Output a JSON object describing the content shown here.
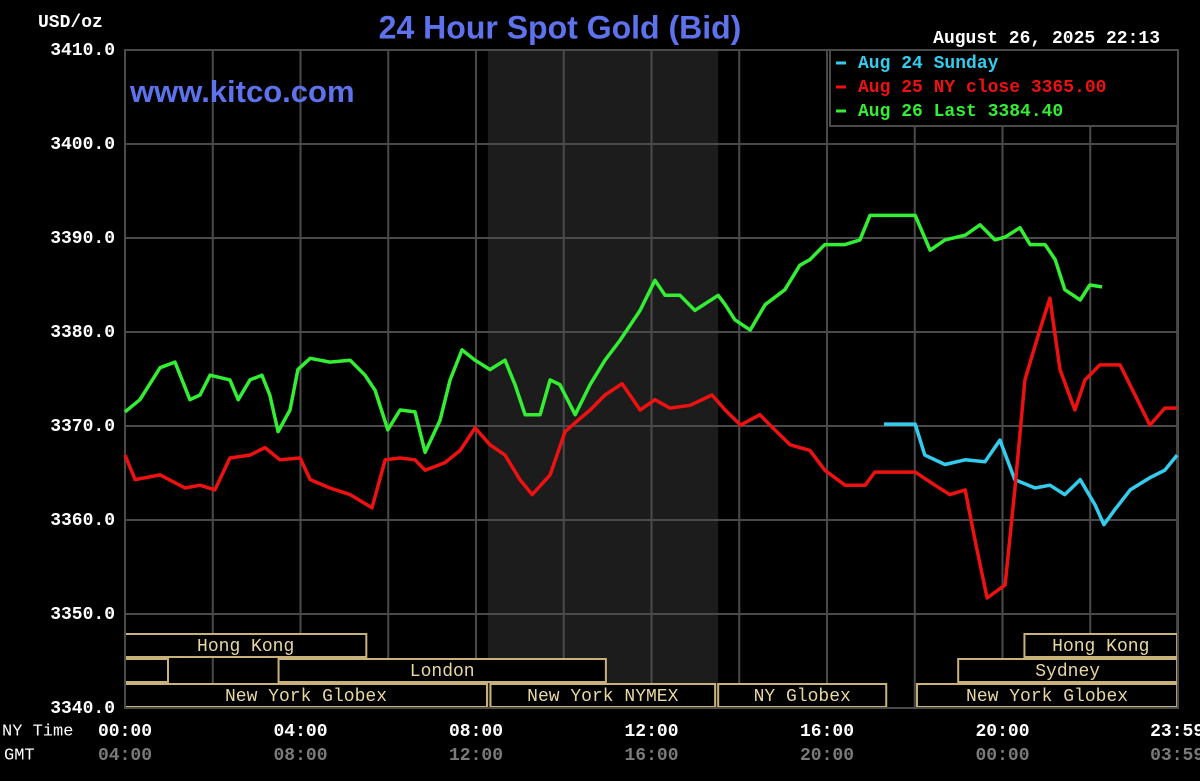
{
  "chart_data": {
    "type": "line",
    "title": "24 Hour Spot Gold (Bid)",
    "y_label": "USD/oz",
    "watermark": "www.kitco.com",
    "timestamp": "August 26, 2025 22:13",
    "x_label": "NY Time",
    "x2_label": "GMT",
    "xlim": [
      0,
      24
    ],
    "ylim": [
      3340,
      3410
    ],
    "yticks": [
      {
        "value": 3340,
        "label": "3340.0"
      },
      {
        "value": 3350,
        "label": "3350.0"
      },
      {
        "value": 3360,
        "label": "3360.0"
      },
      {
        "value": 3370,
        "label": "3370.0"
      },
      {
        "value": 3380,
        "label": "3380.0"
      },
      {
        "value": 3390,
        "label": "3390.0"
      },
      {
        "value": 3400,
        "label": "3400.0"
      },
      {
        "value": 3410,
        "label": "3410.0"
      }
    ],
    "xticks": [
      {
        "value": 0,
        "label": "00:00"
      },
      {
        "value": 4,
        "label": "04:00"
      },
      {
        "value": 8,
        "label": "08:00"
      },
      {
        "value": 12,
        "label": "12:00"
      },
      {
        "value": 16,
        "label": "16:00"
      },
      {
        "value": 20,
        "label": "20:00"
      },
      {
        "value": 23.98,
        "label": "23:59"
      }
    ],
    "x2ticks": [
      {
        "value": 0,
        "label": "04:00"
      },
      {
        "value": 4,
        "label": "08:00"
      },
      {
        "value": 8,
        "label": "12:00"
      },
      {
        "value": 12,
        "label": "16:00"
      },
      {
        "value": 16,
        "label": "20:00"
      },
      {
        "value": 20,
        "label": "00:00"
      },
      {
        "value": 23.98,
        "label": "03:59"
      }
    ],
    "xminorticks": [
      2,
      6,
      10,
      14,
      18,
      22
    ],
    "grid": true,
    "legend": "top-right",
    "shaded": [
      8.27,
      13.52
    ],
    "sessions": [
      {
        "label": "Hong Kong",
        "start": 0,
        "end": 5.5,
        "row": 1
      },
      {
        "label": "Hong Kong",
        "start": 20.5,
        "end": 23.98,
        "row": 1
      },
      {
        "start": 0,
        "end": 0.98,
        "row": 2
      },
      {
        "label": "London",
        "start": 3.5,
        "end": 10.96,
        "row": 2
      },
      {
        "label": "Sydney",
        "start": 18.99,
        "end": 23.98,
        "row": 2
      },
      {
        "label": "New York Globex",
        "start": 0,
        "end": 8.25,
        "row": 3
      },
      {
        "label": "New York NYMEX",
        "start": 8.33,
        "end": 13.45,
        "row": 3
      },
      {
        "label": "NY Globex",
        "start": 13.52,
        "end": 17.35,
        "row": 3
      },
      {
        "label": "New York Globex",
        "start": 18.05,
        "end": 23.98,
        "row": 3
      }
    ],
    "series": [
      {
        "name": "Aug 24 Sunday",
        "color": "#33ccee",
        "x": [
          17.3,
          18.01,
          18.23,
          18.69,
          19.15,
          19.6,
          19.94,
          20.28,
          20.74,
          21.08,
          21.42,
          21.77,
          22.11,
          22.31,
          22.56,
          22.91,
          23.36,
          23.7,
          23.98
        ],
        "values": [
          3370.2,
          3370.2,
          3366.9,
          3365.9,
          3366.4,
          3366.2,
          3368.5,
          3364.3,
          3363.4,
          3363.7,
          3362.7,
          3364.3,
          3361.6,
          3359.5,
          3361.1,
          3363.2,
          3364.5,
          3365.3,
          3366.9
        ]
      },
      {
        "name": "Aug 25 NY close 3365.00",
        "color": "#ee1111",
        "x": [
          0,
          0.23,
          0.8,
          1.37,
          1.71,
          2.05,
          2.39,
          2.85,
          3.19,
          3.53,
          3.99,
          4.22,
          4.67,
          5.13,
          5.63,
          5.93,
          6.27,
          6.61,
          6.84,
          7.29,
          7.64,
          7.98,
          8.32,
          8.66,
          9.0,
          9.28,
          9.69,
          10.03,
          10.32,
          10.6,
          10.94,
          11.33,
          11.74,
          12.08,
          12.42,
          12.88,
          13.38,
          13.68,
          14.03,
          14.47,
          14.7,
          15.16,
          15.61,
          15.95,
          16.41,
          16.87,
          17.09,
          18.01,
          18.46,
          18.8,
          19.15,
          19.37,
          19.65,
          20.06,
          20.28,
          20.51,
          20.85,
          21.08,
          21.31,
          21.65,
          21.88,
          22.22,
          22.68,
          23.02,
          23.36,
          23.7,
          23.98
        ],
        "values": [
          3366.9,
          3364.3,
          3364.8,
          3363.4,
          3363.7,
          3363.2,
          3366.6,
          3366.9,
          3367.7,
          3366.4,
          3366.6,
          3364.3,
          3363.4,
          3362.7,
          3361.3,
          3366.4,
          3366.6,
          3366.4,
          3365.3,
          3366.1,
          3367.4,
          3369.8,
          3368.0,
          3366.9,
          3364.3,
          3362.7,
          3364.8,
          3369.4,
          3370.6,
          3371.7,
          3373.3,
          3374.5,
          3371.7,
          3372.8,
          3371.9,
          3372.2,
          3373.3,
          3371.7,
          3370.1,
          3371.2,
          3370.1,
          3368.0,
          3367.4,
          3365.3,
          3363.7,
          3363.7,
          3365.1,
          3365.1,
          3363.7,
          3362.7,
          3363.2,
          3357.9,
          3351.7,
          3353.1,
          3363.2,
          3374.9,
          3380.2,
          3383.6,
          3376.0,
          3371.7,
          3374.9,
          3376.5,
          3376.5,
          3373.3,
          3370.1,
          3371.9,
          3371.9
        ]
      },
      {
        "name": "Aug 26 Last 3384.40",
        "color": "#33ee33",
        "x": [
          0,
          0.34,
          0.8,
          1.14,
          1.48,
          1.71,
          1.94,
          2.39,
          2.58,
          2.85,
          3.12,
          3.3,
          3.49,
          3.76,
          3.94,
          4.22,
          4.67,
          5.13,
          5.47,
          5.7,
          5.99,
          6.27,
          6.61,
          6.84,
          7.18,
          7.41,
          7.68,
          7.98,
          8.32,
          8.66,
          8.89,
          9.12,
          9.46,
          9.69,
          9.91,
          10.26,
          10.6,
          10.94,
          11.28,
          11.74,
          12.08,
          12.31,
          12.65,
          12.99,
          13.52,
          13.68,
          13.9,
          14.25,
          14.59,
          15.04,
          15.38,
          15.61,
          15.95,
          16.41,
          16.75,
          16.98,
          18.01,
          18.35,
          18.69,
          19.15,
          19.49,
          19.83,
          20.06,
          20.4,
          20.63,
          20.97,
          21.2,
          21.42,
          21.77,
          21.99,
          22.27
        ],
        "values": [
          3371.5,
          3372.8,
          3376.2,
          3376.8,
          3372.8,
          3373.3,
          3375.4,
          3374.9,
          3372.8,
          3374.9,
          3375.4,
          3373.3,
          3369.4,
          3371.7,
          3376.0,
          3377.2,
          3376.8,
          3377.0,
          3375.4,
          3373.8,
          3369.6,
          3371.7,
          3371.5,
          3367.2,
          3370.6,
          3374.9,
          3378.1,
          3377.0,
          3376.0,
          3377.0,
          3374.4,
          3371.2,
          3371.2,
          3374.9,
          3374.4,
          3371.2,
          3374.4,
          3377.0,
          3379.1,
          3382.3,
          3385.5,
          3383.9,
          3383.9,
          3382.3,
          3383.9,
          3382.9,
          3381.3,
          3380.2,
          3382.9,
          3384.5,
          3387.1,
          3387.7,
          3389.3,
          3389.3,
          3389.8,
          3392.4,
          3392.4,
          3388.7,
          3389.8,
          3390.3,
          3391.4,
          3389.8,
          3390.1,
          3391.1,
          3389.3,
          3389.3,
          3387.7,
          3384.5,
          3383.4,
          3385.0,
          3384.8
        ]
      }
    ]
  }
}
